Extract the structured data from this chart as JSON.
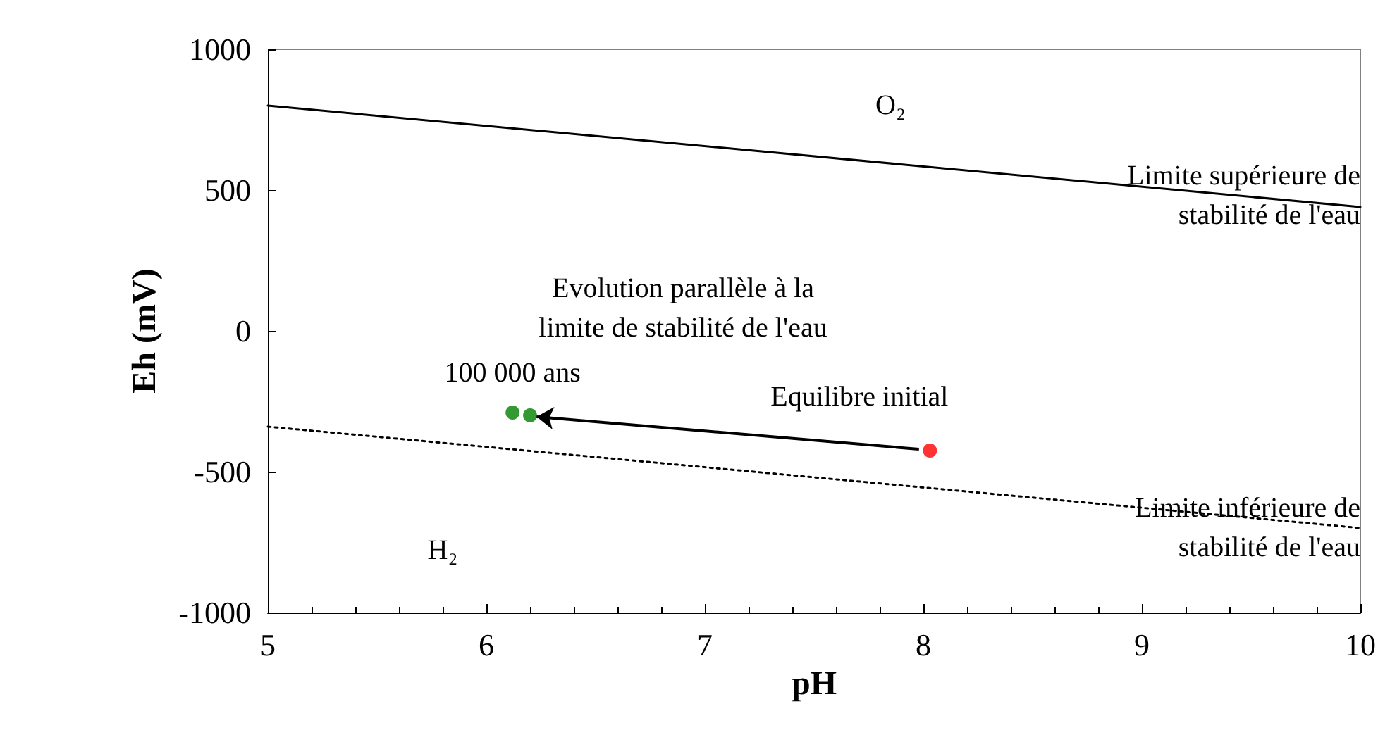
{
  "chart_data": {
    "type": "line",
    "xlabel": "pH",
    "ylabel": "Eh (mV)",
    "xlim": [
      5,
      10
    ],
    "xticks": [
      5,
      6,
      7,
      8,
      9,
      10
    ],
    "ylim": [
      -1000,
      1000
    ],
    "yticks": [
      -1000,
      -500,
      0,
      500,
      1000
    ],
    "grid": false,
    "series": [
      {
        "type": "line",
        "color": "#000000",
        "line_style": "solid",
        "marker": "none",
        "x": [
          5,
          10
        ],
        "values": [
          800,
          440
        ]
      },
      {
        "type": "line",
        "color": "#000000",
        "line_style": "dotted",
        "marker": "none",
        "x": [
          5,
          10
        ],
        "values": [
          -340,
          -700
        ]
      },
      {
        "type": "scatter",
        "color": "#ff0000",
        "marker": "circle",
        "x": [
          8.03
        ],
        "values": [
          -425
        ]
      },
      {
        "type": "scatter",
        "color": "#008000",
        "marker": "circle",
        "x": [
          6.12,
          6.2
        ],
        "values": [
          -290,
          -300
        ]
      }
    ],
    "annotations": [
      "O₂",
      "H₂",
      {
        "text": "Limite supérieure de\nstabilité de l'eau",
        "x": 10,
        "y": 440
      },
      {
        "text": "Limite inférieure de\nstabilité de l'eau",
        "x": 10,
        "y": -700
      },
      "Evolution parallèle à la\nlimite de stabilité de l'eau",
      {
        "text": "100 000 ans",
        "x": 6.12,
        "y": -290
      },
      {
        "text": "Equilibre initial",
        "x": 8.03,
        "y": -425
      }
    ]
  }
}
